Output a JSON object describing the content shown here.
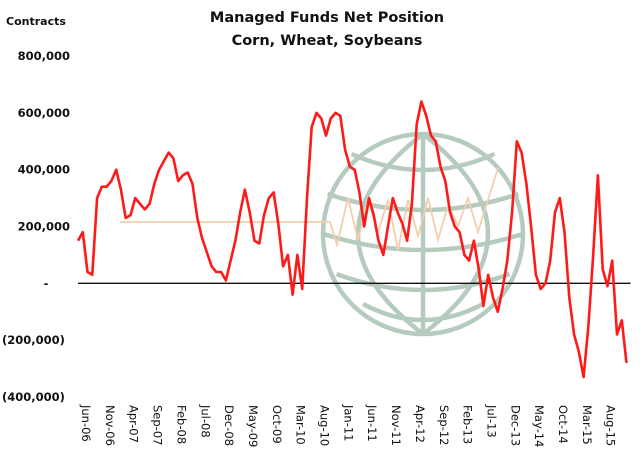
{
  "chart_data": {
    "type": "line",
    "title": "Managed Funds Net Position",
    "subtitle": "Corn, Wheat, Soybeans",
    "ylabel": "Contracts",
    "xlabel": "",
    "ylim": [
      -400000,
      800000
    ],
    "yticks": [
      800000,
      600000,
      400000,
      200000,
      0,
      -200000,
      -400000
    ],
    "ytick_labels": [
      "800,000",
      "600,000",
      "400,000",
      "200,000",
      "-",
      "(200,000)",
      "(400,000)"
    ],
    "xtick_labels": [
      "Jun-06",
      "Nov-06",
      "Apr-07",
      "Sep-07",
      "Feb-08",
      "Jul-08",
      "Dec-08",
      "May-09",
      "Oct-09",
      "Mar-10",
      "Aug-10",
      "Jan-11",
      "Jun-11",
      "Nov-11",
      "Apr-12",
      "Sep-12",
      "Feb-13",
      "Jul-13",
      "Dec-13",
      "May-14",
      "Oct-14",
      "Mar-15",
      "Aug-15"
    ],
    "grid": false,
    "zero_line": true,
    "series": [
      {
        "color": "#ff1a1a",
        "start": "Jun-06",
        "frequency": "monthly",
        "values": [
          150000,
          180000,
          40000,
          30000,
          300000,
          340000,
          340000,
          360000,
          400000,
          330000,
          230000,
          240000,
          300000,
          280000,
          260000,
          280000,
          350000,
          400000,
          430000,
          460000,
          440000,
          360000,
          380000,
          390000,
          350000,
          230000,
          160000,
          110000,
          60000,
          40000,
          40000,
          10000,
          80000,
          150000,
          250000,
          330000,
          250000,
          150000,
          140000,
          240000,
          300000,
          320000,
          210000,
          60000,
          100000,
          -40000,
          100000,
          -20000,
          300000,
          550000,
          600000,
          580000,
          520000,
          580000,
          600000,
          590000,
          470000,
          410000,
          400000,
          320000,
          200000,
          300000,
          240000,
          150000,
          100000,
          200000,
          300000,
          250000,
          210000,
          150000,
          280000,
          560000,
          640000,
          590000,
          520000,
          500000,
          410000,
          360000,
          250000,
          200000,
          180000,
          100000,
          80000,
          150000,
          50000,
          -80000,
          30000,
          -50000,
          -100000,
          -20000,
          80000,
          250000,
          500000,
          460000,
          350000,
          200000,
          30000,
          -20000,
          0,
          80000,
          250000,
          300000,
          180000,
          -50000,
          -180000,
          -240000,
          -330000,
          -150000,
          100000,
          380000,
          50000,
          -10000,
          80000,
          -180000,
          -130000,
          -280000
        ]
      }
    ]
  },
  "watermark": {
    "icon": "globe-logo-icon",
    "color": "#b5cbbd"
  }
}
